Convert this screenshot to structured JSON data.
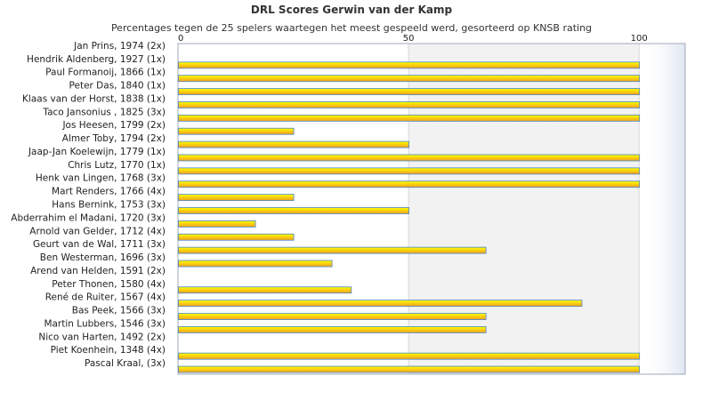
{
  "chart_data": {
    "type": "bar",
    "orientation": "horizontal",
    "title": "DRL Scores Gerwin van der Kamp",
    "subtitle": "Percentages tegen de 25 spelers waartegen het meest gespeeld werd, gesorteerd op KNSB rating",
    "xlim": [
      0,
      110
    ],
    "xticks": [
      0,
      50,
      100
    ],
    "categories": [
      "Jan Prins, 1974 (2x)",
      "Hendrik Aldenberg, 1927 (1x)",
      "Paul Formanoij, 1866 (1x)",
      "Peter Das, 1840 (1x)",
      "Klaas van der Horst, 1838 (1x)",
      "Taco Jansonius , 1825 (3x)",
      "Jos Heesen, 1799 (2x)",
      "Almer Toby, 1794 (2x)",
      "Jaap-Jan Koelewijn, 1779 (1x)",
      "Chris Lutz, 1770 (1x)",
      "Henk van Lingen, 1768 (3x)",
      "Mart Renders, 1766 (4x)",
      "Hans Bernink, 1753 (3x)",
      "Abderrahim el Madani, 1720 (3x)",
      "Arnold van Gelder, 1712 (4x)",
      "Geurt van de Wal, 1711 (3x)",
      "Ben Westerman, 1696 (3x)",
      "Arend van Helden, 1591 (2x)",
      "Peter Thonen, 1580 (4x)",
      "René de Ruiter, 1567 (4x)",
      "Bas Peek, 1566 (3x)",
      "Martin Lubbers, 1546 (3x)",
      "Nico van Harten, 1492 (2x)",
      "Piet Koenhein, 1348 (4x)",
      "Pascal Kraal,  (3x)"
    ],
    "values": [
      0,
      100,
      100,
      100,
      100,
      100,
      25,
      50,
      100,
      100,
      100,
      25,
      50,
      16.7,
      25,
      66.7,
      33.3,
      0,
      37.5,
      87.5,
      66.7,
      66.7,
      0,
      100,
      100
    ],
    "colors": {
      "bar_top": "#ffff00",
      "bar_bottom": "#f0a020",
      "bar_border": "#4a86c8",
      "shaded_region": "#f2f2f2",
      "grid": "#d8d8d8",
      "plot_border": "#a0a8b8"
    },
    "grid": true,
    "legend": "none"
  }
}
